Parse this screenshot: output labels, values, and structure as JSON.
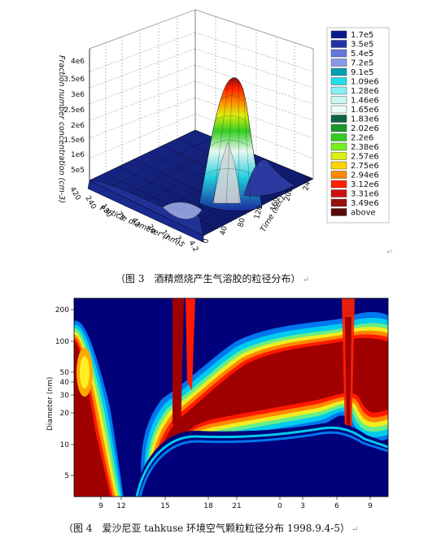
{
  "figure3": {
    "z_axis_title": "Fraction number concentration (cm-3)",
    "z_ticks": [
      "5e5",
      "1e6",
      "1.5e6",
      "2e6",
      "2.5e6",
      "3e6",
      "3.5e6",
      "4e6"
    ],
    "particle_axis_title": "Particle diameter (nm)",
    "particle_ticks": [
      "420",
      "240",
      "130",
      "75",
      "42",
      "24",
      "13",
      "7.5",
      "4.2"
    ],
    "time_axis_title": "Time (sec)",
    "time_ticks": [
      "0",
      "40",
      "80",
      "120",
      "160",
      "200",
      "240"
    ],
    "legend": [
      {
        "label": "1.7e5",
        "color": "#0a1a8c"
      },
      {
        "label": "3.5e5",
        "color": "#2233aa"
      },
      {
        "label": "5.4e5",
        "color": "#6677dd"
      },
      {
        "label": "7.2e5",
        "color": "#8899e8"
      },
      {
        "label": "9.1e5",
        "color": "#00a0b4"
      },
      {
        "label": "1.09e6",
        "color": "#22dde8"
      },
      {
        "label": "1.28e6",
        "color": "#88f0f0"
      },
      {
        "label": "1.46e6",
        "color": "#c8f8f0"
      },
      {
        "label": "1.65e6",
        "color": "#e8fff8"
      },
      {
        "label": "1.83e6",
        "color": "#0c6640"
      },
      {
        "label": "2.02e6",
        "color": "#1a9a2a"
      },
      {
        "label": "2.2e6",
        "color": "#33cc22"
      },
      {
        "label": "2.38e6",
        "color": "#77ee22"
      },
      {
        "label": "2.57e6",
        "color": "#ddee11"
      },
      {
        "label": "2.75e6",
        "color": "#ffd400"
      },
      {
        "label": "2.94e6",
        "color": "#ff8800"
      },
      {
        "label": "3.12e6",
        "color": "#ff2200"
      },
      {
        "label": "3.31e6",
        "color": "#cc1010"
      },
      {
        "label": "3.49e6",
        "color": "#991010"
      },
      {
        "label": "above",
        "color": "#5a0a0a"
      }
    ],
    "caption": "（图 3　酒精燃烧产生气溶胶的粒径分布）"
  },
  "figure4": {
    "y_axis_title": "Diameter (nm)",
    "y_ticks": [
      "200",
      "100",
      "50",
      "40",
      "30",
      "20",
      "10",
      "5"
    ],
    "x_ticks": [
      "9",
      "12",
      "15",
      "18",
      "21",
      "0",
      "3",
      "6",
      "9"
    ],
    "caption": "（图 4　爱沙尼亚 tahkuse 环境空气颗粒粒径分布 1998.9.4-5）"
  },
  "marks": {
    "para": "↵"
  }
}
